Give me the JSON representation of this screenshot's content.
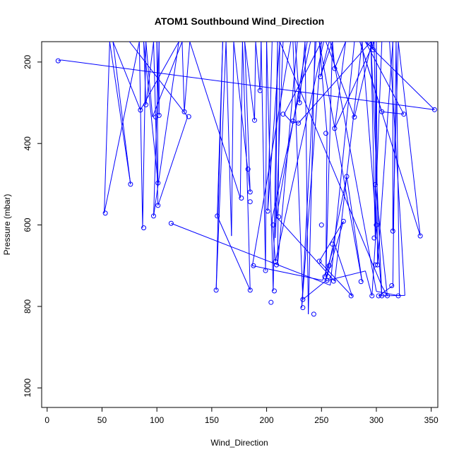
{
  "chart_data": {
    "type": "line",
    "title": "ATOM1 Southbound Wind_Direction",
    "xlabel": "Wind_Direction",
    "ylabel": "Pressure (mbar)",
    "xlim": [
      -5,
      356
    ],
    "ylim": [
      1048,
      150
    ],
    "y_reversed": true,
    "x_ticks": [
      0,
      50,
      100,
      150,
      200,
      250,
      300,
      350
    ],
    "y_ticks": [
      200,
      400,
      600,
      800,
      1000
    ],
    "grid": false,
    "color": "#0000ff",
    "marker": "open-circle",
    "series": [
      {
        "label_points": [
          [
            10,
            197
          ],
          [
            13,
            195
          ],
          [
            353,
            317
          ],
          [
            290,
            150
          ],
          [
            325,
            328
          ],
          [
            305,
            322
          ],
          [
            285,
            150
          ],
          [
            340,
            627
          ],
          [
            320,
            150
          ],
          [
            315,
            615
          ],
          [
            315,
            150
          ],
          [
            305,
            150
          ],
          [
            300,
            502
          ],
          [
            298,
            150
          ],
          [
            262,
            363
          ],
          [
            272,
            150
          ],
          [
            262,
            216
          ],
          [
            260,
            150
          ],
          [
            249,
            236
          ],
          [
            257,
            150
          ],
          [
            244,
            150
          ],
          [
            238,
            819
          ],
          [
            235,
            150
          ],
          [
            230,
            300
          ],
          [
            226,
            150
          ],
          [
            215,
            150
          ],
          [
            208,
            632
          ],
          [
            210,
            150
          ],
          [
            206,
            762
          ],
          [
            200,
            150
          ],
          [
            199,
            712
          ],
          [
            195,
            150
          ],
          [
            194,
            270
          ],
          [
            190,
            150
          ],
          [
            189,
            343
          ],
          [
            180,
            150
          ],
          [
            185,
            519
          ],
          [
            170,
            150
          ],
          [
            168,
            627
          ],
          [
            163,
            150
          ],
          [
            154,
            760
          ],
          [
            160,
            150
          ],
          [
            160,
            150
          ],
          [
            155,
            578
          ],
          [
            185,
            760
          ],
          [
            182,
            463
          ],
          [
            178,
            150
          ],
          [
            176,
            534
          ],
          [
            130,
            150
          ],
          [
            125,
            322
          ],
          [
            123,
            150
          ],
          [
            96,
            335
          ],
          [
            90,
            150
          ],
          [
            87,
            607
          ],
          [
            84,
            150
          ],
          [
            52,
            571
          ],
          [
            57,
            150
          ],
          [
            76,
            500
          ],
          [
            60,
            150
          ],
          [
            85,
            318
          ],
          [
            120,
            150
          ],
          [
            97,
            578
          ],
          [
            102,
            150
          ],
          [
            102,
            331
          ],
          [
            100,
            150
          ],
          [
            101,
            497
          ],
          [
            88,
            150
          ],
          [
            90,
            305
          ],
          [
            97,
            150
          ],
          [
            101,
            552
          ],
          [
            128,
            334
          ],
          [
            75,
            150
          ]
        ]
      },
      {
        "label_points": [
          [
            113,
            596
          ],
          [
            258,
            748
          ],
          [
            280,
            150
          ],
          [
            301,
            150
          ],
          [
            228,
            150
          ],
          [
            210,
            698
          ],
          [
            212,
            150
          ],
          [
            201,
            566
          ],
          [
            205,
            150
          ],
          [
            237,
            150
          ],
          [
            209,
            580
          ],
          [
            262,
            738
          ],
          [
            287,
            150
          ],
          [
            305,
            775
          ],
          [
            295,
            150
          ],
          [
            229,
            350
          ],
          [
            222,
            345
          ],
          [
            216,
            328
          ],
          [
            250,
            150
          ],
          [
            232,
            803
          ],
          [
            245,
            150
          ],
          [
            240,
            150
          ],
          [
            205,
            585
          ],
          [
            208,
            690
          ],
          [
            252,
            150
          ],
          [
            262,
            150
          ],
          [
            248,
            150
          ],
          [
            255,
            375
          ],
          [
            254,
            727
          ],
          [
            260,
            150
          ],
          [
            297,
            150
          ],
          [
            297,
            170
          ],
          [
            295,
            150
          ],
          [
            299,
            632
          ],
          [
            300,
            150
          ],
          [
            301,
            698
          ],
          [
            315,
            150
          ],
          [
            312,
            150
          ],
          [
            326,
            773
          ],
          [
            302,
            774
          ],
          [
            315,
            749
          ],
          [
            318,
            150
          ],
          [
            321,
            774
          ],
          [
            300,
            763
          ],
          [
            258,
            150
          ],
          [
            254,
            150
          ],
          [
            296,
            150
          ],
          [
            280,
            335
          ],
          [
            254,
            150
          ],
          [
            248,
            150
          ],
          [
            287,
            739
          ],
          [
            273,
            481
          ],
          [
            254,
            736
          ],
          [
            270,
            591
          ],
          [
            248,
            689
          ],
          [
            278,
            775
          ],
          [
            262,
            647
          ],
          [
            256,
            700
          ],
          [
            251,
            736
          ],
          [
            187,
            700
          ],
          [
            222,
            150
          ],
          [
            212,
            150
          ],
          [
            305,
            750
          ],
          [
            310,
            774
          ],
          [
            299,
            501
          ],
          [
            300,
            600
          ],
          [
            296,
            774
          ],
          [
            290,
            713
          ],
          [
            254,
            737
          ],
          [
            233,
            783
          ],
          [
            224,
            150
          ]
        ]
      }
    ],
    "points": [
      [
        10,
        197
      ],
      [
        353,
        317
      ],
      [
        340,
        627
      ],
      [
        325,
        328
      ],
      [
        320,
        774
      ],
      [
        315,
        615
      ],
      [
        314,
        749
      ],
      [
        310,
        774
      ],
      [
        305,
        322
      ],
      [
        305,
        774
      ],
      [
        302,
        774
      ],
      [
        301,
        698
      ],
      [
        300,
        600
      ],
      [
        299,
        698
      ],
      [
        299,
        501
      ],
      [
        298,
        632
      ],
      [
        297,
        170
      ],
      [
        296,
        774
      ],
      [
        294,
        154
      ],
      [
        286,
        739
      ],
      [
        280,
        335
      ],
      [
        277,
        774
      ],
      [
        273,
        481
      ],
      [
        270,
        591
      ],
      [
        262,
        363
      ],
      [
        262,
        216
      ],
      [
        261,
        738
      ],
      [
        260,
        647
      ],
      [
        257,
        700
      ],
      [
        256,
        727
      ],
      [
        255,
        736
      ],
      [
        254,
        375
      ],
      [
        253,
        727
      ],
      [
        250,
        600
      ],
      [
        249,
        236
      ],
      [
        248,
        689
      ],
      [
        243,
        819
      ],
      [
        233,
        803
      ],
      [
        233,
        783
      ],
      [
        230,
        300
      ],
      [
        229,
        350
      ],
      [
        224,
        345
      ],
      [
        215,
        328
      ],
      [
        211,
        580
      ],
      [
        209,
        698
      ],
      [
        208,
        690
      ],
      [
        207,
        762
      ],
      [
        206,
        600
      ],
      [
        204,
        790
      ],
      [
        201,
        566
      ],
      [
        199,
        712
      ],
      [
        194,
        270
      ],
      [
        189,
        343
      ],
      [
        188,
        700
      ],
      [
        185,
        519
      ],
      [
        185,
        760
      ],
      [
        185,
        543
      ],
      [
        183,
        463
      ],
      [
        177,
        534
      ],
      [
        155,
        578
      ],
      [
        154,
        760
      ],
      [
        129,
        334
      ],
      [
        125,
        322
      ],
      [
        113,
        596
      ],
      [
        102,
        331
      ],
      [
        101,
        552
      ],
      [
        101,
        497
      ],
      [
        99,
        335
      ],
      [
        97,
        578
      ],
      [
        90,
        305
      ],
      [
        88,
        607
      ],
      [
        85,
        318
      ],
      [
        76,
        500
      ],
      [
        53,
        571
      ]
    ],
    "connections": [
      [
        0,
        1
      ],
      [
        1,
        2
      ],
      [
        2,
        3
      ],
      [
        3,
        4
      ],
      [
        4,
        5
      ],
      [
        5,
        6
      ],
      [
        6,
        7
      ],
      [
        7,
        8
      ],
      [
        8,
        9
      ],
      [
        9,
        10
      ],
      [
        10,
        11
      ],
      [
        11,
        12
      ],
      [
        12,
        13
      ],
      [
        13,
        14
      ],
      [
        14,
        15
      ],
      [
        15,
        16
      ],
      [
        16,
        17
      ],
      [
        17,
        18
      ],
      [
        18,
        19
      ],
      [
        19,
        20
      ],
      [
        20,
        21
      ],
      [
        21,
        22
      ],
      [
        22,
        23
      ],
      [
        23,
        24
      ],
      [
        24,
        25
      ],
      [
        25,
        26
      ],
      [
        26,
        27
      ],
      [
        27,
        28
      ],
      [
        28,
        29
      ],
      [
        29,
        30
      ],
      [
        30,
        31
      ],
      [
        31,
        32
      ],
      [
        32,
        33
      ],
      [
        33,
        34
      ],
      [
        34,
        35
      ],
      [
        35,
        36
      ],
      [
        36,
        37
      ],
      [
        37,
        38
      ],
      [
        38,
        39
      ],
      [
        39,
        40
      ],
      [
        40,
        41
      ],
      [
        41,
        42
      ],
      [
        42,
        43
      ],
      [
        43,
        44
      ],
      [
        44,
        45
      ],
      [
        45,
        46
      ],
      [
        46,
        47
      ],
      [
        47,
        48
      ],
      [
        48,
        49
      ],
      [
        49,
        50
      ],
      [
        50,
        51
      ],
      [
        51,
        52
      ],
      [
        52,
        53
      ],
      [
        53,
        54
      ],
      [
        54,
        55
      ],
      [
        55,
        56
      ],
      [
        56,
        57
      ],
      [
        57,
        58
      ],
      [
        58,
        59
      ],
      [
        59,
        60
      ],
      [
        60,
        61
      ],
      [
        61,
        62
      ],
      [
        62,
        63
      ],
      [
        63,
        64
      ],
      [
        64,
        65
      ],
      [
        65,
        66
      ],
      [
        66,
        67
      ],
      [
        67,
        68
      ],
      [
        68,
        69
      ],
      [
        69,
        70
      ],
      [
        70,
        71
      ],
      [
        71,
        72
      ],
      [
        72,
        73
      ]
    ]
  }
}
